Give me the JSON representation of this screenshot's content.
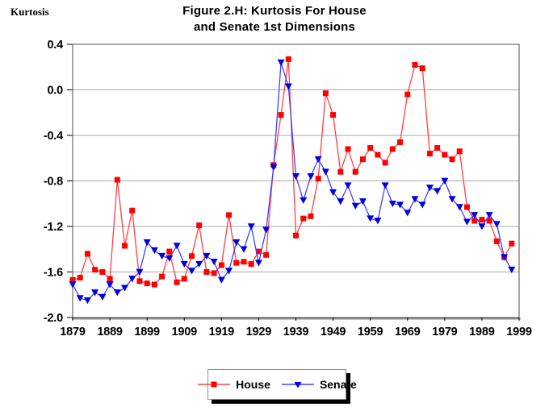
{
  "figure": {
    "title_line1": "Figure 2.H:  Kurtosis For House",
    "title_line2": "and Senate 1st Dimensions",
    "y_axis_floating_label": "Kurtosis"
  },
  "chart_data": {
    "type": "line",
    "title": "Figure 2.H: Kurtosis For House and Senate 1st Dimensions",
    "xlabel": "",
    "ylabel": "Kurtosis",
    "xlim": [
      1879,
      1999
    ],
    "ylim": [
      -2.0,
      0.4
    ],
    "grid": "horizontal",
    "legend_position": "bottom-center",
    "x_tick_labels": [
      "1879",
      "1889",
      "1899",
      "1909",
      "1919",
      "1929",
      "1939",
      "1949",
      "1959",
      "1969",
      "1979",
      "1989",
      "1999"
    ],
    "y_tick_values": [
      0.4,
      0.0,
      -0.4,
      -0.8,
      -1.2,
      -1.6,
      -2.0
    ],
    "y_tick_labels": [
      "0.4",
      "0.0",
      "-0.4",
      "-0.8",
      "-1.2",
      "-1.6",
      "-2.0"
    ],
    "colors": {
      "house": "#ff0000",
      "house_line": "#ff4040",
      "senate": "#0000dd",
      "senate_line": "#4040ff",
      "grid": "#a8a8a8",
      "frame": "#4d4d4d",
      "baseline": "#909090"
    },
    "x": [
      1879,
      1881,
      1883,
      1885,
      1887,
      1889,
      1891,
      1893,
      1895,
      1897,
      1899,
      1901,
      1903,
      1905,
      1907,
      1909,
      1911,
      1913,
      1915,
      1917,
      1919,
      1921,
      1923,
      1925,
      1927,
      1929,
      1931,
      1933,
      1935,
      1937,
      1939,
      1941,
      1943,
      1945,
      1947,
      1949,
      1951,
      1953,
      1955,
      1957,
      1959,
      1961,
      1963,
      1965,
      1967,
      1969,
      1971,
      1973,
      1975,
      1977,
      1979,
      1981,
      1983,
      1985,
      1987,
      1989,
      1991,
      1993,
      1995,
      1997
    ],
    "series": [
      {
        "name": "House",
        "marker": "square",
        "color": "#ff0000",
        "line_color": "#ff4040",
        "values": [
          -1.67,
          -1.65,
          -1.44,
          -1.58,
          -1.6,
          -1.66,
          -0.79,
          -1.37,
          -1.06,
          -1.68,
          -1.7,
          -1.71,
          -1.64,
          -1.42,
          -1.69,
          -1.66,
          -1.46,
          -1.19,
          -1.6,
          -1.61,
          -1.54,
          -1.1,
          -1.52,
          -1.51,
          -1.53,
          -1.42,
          -1.45,
          -0.66,
          -0.22,
          0.27,
          -1.28,
          -1.13,
          -1.11,
          -0.78,
          -0.03,
          -0.22,
          -0.72,
          -0.52,
          -0.72,
          -0.61,
          -0.51,
          -0.57,
          -0.64,
          -0.52,
          -0.46,
          -0.04,
          0.22,
          0.19,
          -0.56,
          -0.51,
          -0.57,
          -0.61,
          -0.54,
          -1.03,
          -1.15,
          -1.14,
          -1.15,
          -1.33,
          -1.47,
          -1.35
        ]
      },
      {
        "name": "Senate",
        "marker": "triangle-down",
        "color": "#0000dd",
        "line_color": "#4040ff",
        "values": [
          -1.71,
          -1.83,
          -1.85,
          -1.78,
          -1.82,
          -1.71,
          -1.78,
          -1.74,
          -1.66,
          -1.6,
          -1.34,
          -1.41,
          -1.46,
          -1.48,
          -1.37,
          -1.53,
          -1.59,
          -1.53,
          -1.46,
          -1.51,
          -1.67,
          -1.59,
          -1.34,
          -1.4,
          -1.2,
          -1.52,
          -1.23,
          -0.68,
          0.24,
          0.03,
          -0.76,
          -0.97,
          -0.76,
          -0.61,
          -0.72,
          -0.9,
          -0.98,
          -0.84,
          -1.02,
          -0.98,
          -1.13,
          -1.15,
          -0.84,
          -1.0,
          -1.01,
          -1.08,
          -0.96,
          -1.01,
          -0.86,
          -0.89,
          -0.8,
          -0.96,
          -1.03,
          -1.16,
          -1.1,
          -1.2,
          -1.1,
          -1.18,
          -1.47,
          -1.58
        ]
      }
    ]
  }
}
